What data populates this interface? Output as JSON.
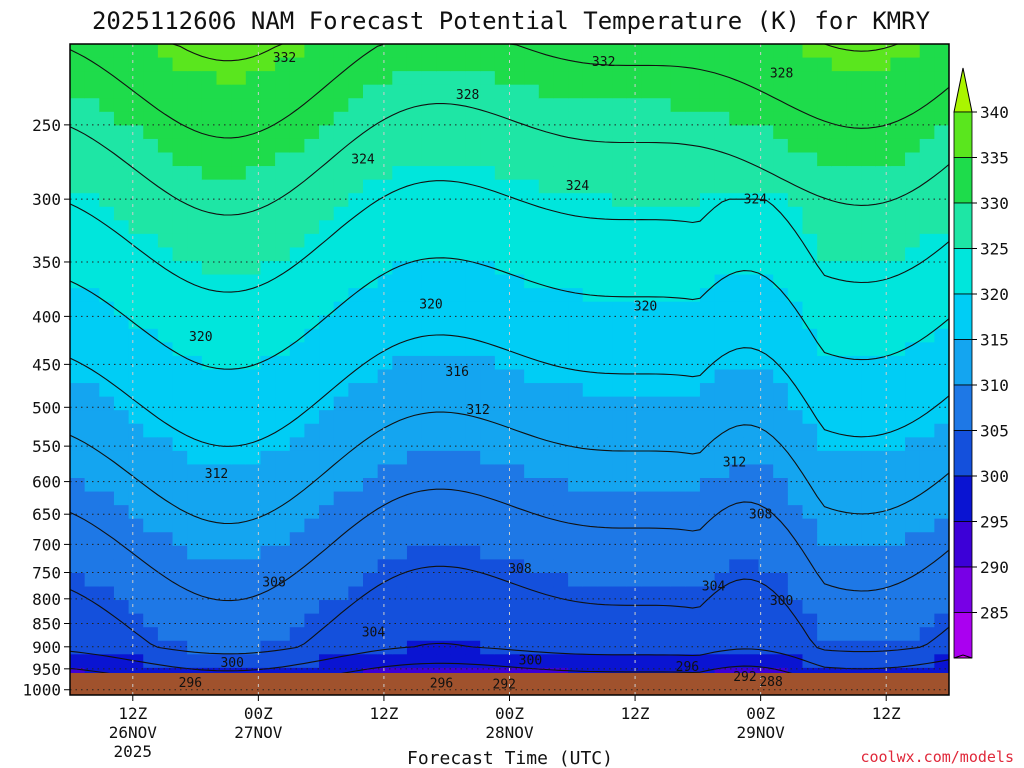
{
  "title": "2025112606 NAM Forecast Potential Temperature (K) for KMRY",
  "credit": "coolwx.com/models",
  "chart_data": {
    "type": "heatmap",
    "title": "2025112606 NAM Forecast Potential Temperature (K) for KMRY",
    "xlabel": "Forecast Time (UTC)",
    "ylabel": "",
    "x_ticks": [
      {
        "lines": [
          "12Z",
          "26NOV",
          "2025"
        ],
        "hour": 6
      },
      {
        "lines": [
          "00Z",
          "27NOV"
        ],
        "hour": 18
      },
      {
        "lines": [
          "12Z"
        ],
        "hour": 30
      },
      {
        "lines": [
          "00Z",
          "28NOV"
        ],
        "hour": 42
      },
      {
        "lines": [
          "12Z"
        ],
        "hour": 54
      },
      {
        "lines": [
          "00Z",
          "29NOV"
        ],
        "hour": 66
      },
      {
        "lines": [
          "12Z"
        ],
        "hour": 78
      }
    ],
    "xlim": [
      0,
      84
    ],
    "y_ticks": [
      "250",
      "300",
      "350",
      "400",
      "450",
      "500",
      "550",
      "600",
      "650",
      "700",
      "750",
      "800",
      "850",
      "900",
      "950",
      "1000"
    ],
    "y_scale": "log",
    "ylim": [
      1013,
      205
    ],
    "grid": true,
    "colorbar_labels": [
      "340",
      "335",
      "330",
      "325",
      "320",
      "315",
      "310",
      "305",
      "300",
      "295",
      "290",
      "285"
    ],
    "colorbar_colors": [
      "#aaf500",
      "#5ae61e",
      "#1edc4b",
      "#1ee6a5",
      "#00e6dc",
      "#00cdf5",
      "#14a5f0",
      "#1e78e6",
      "#1450dc",
      "#0a14d2",
      "#3c00d7",
      "#7800e6",
      "#aa00f0",
      "#d200f5"
    ],
    "contour_labels": [
      {
        "text": "332",
        "hour": 20.5,
        "p": 212
      },
      {
        "text": "332",
        "hour": 51,
        "p": 214
      },
      {
        "text": "328",
        "hour": 68,
        "p": 220
      },
      {
        "text": "328",
        "hour": 38,
        "p": 232
      },
      {
        "text": "324",
        "hour": 28,
        "p": 272
      },
      {
        "text": "324",
        "hour": 48.5,
        "p": 290
      },
      {
        "text": "324",
        "hour": 65.5,
        "p": 300
      },
      {
        "text": "320",
        "hour": 34.5,
        "p": 388
      },
      {
        "text": "320",
        "hour": 55,
        "p": 390
      },
      {
        "text": "320",
        "hour": 12.5,
        "p": 420
      },
      {
        "text": "316",
        "hour": 37,
        "p": 458
      },
      {
        "text": "312",
        "hour": 39,
        "p": 503
      },
      {
        "text": "312",
        "hour": 63.5,
        "p": 572
      },
      {
        "text": "312",
        "hour": 14,
        "p": 588
      },
      {
        "text": "308",
        "hour": 66,
        "p": 650
      },
      {
        "text": "308",
        "hour": 43,
        "p": 743
      },
      {
        "text": "308",
        "hour": 19.5,
        "p": 768
      },
      {
        "text": "304",
        "hour": 61.5,
        "p": 775
      },
      {
        "text": "300",
        "hour": 68,
        "p": 803
      },
      {
        "text": "304",
        "hour": 29,
        "p": 868
      },
      {
        "text": "300",
        "hour": 15.5,
        "p": 935
      },
      {
        "text": "300",
        "hour": 44,
        "p": 930
      },
      {
        "text": "296",
        "hour": 59,
        "p": 945
      },
      {
        "text": "292",
        "hour": 64.5,
        "p": 968
      },
      {
        "text": "288",
        "hour": 67,
        "p": 980
      },
      {
        "text": "296",
        "hour": 11.5,
        "p": 982
      },
      {
        "text": "296",
        "hour": 35.5,
        "p": 984
      },
      {
        "text": "292",
        "hour": 41.5,
        "p": 986
      }
    ]
  }
}
